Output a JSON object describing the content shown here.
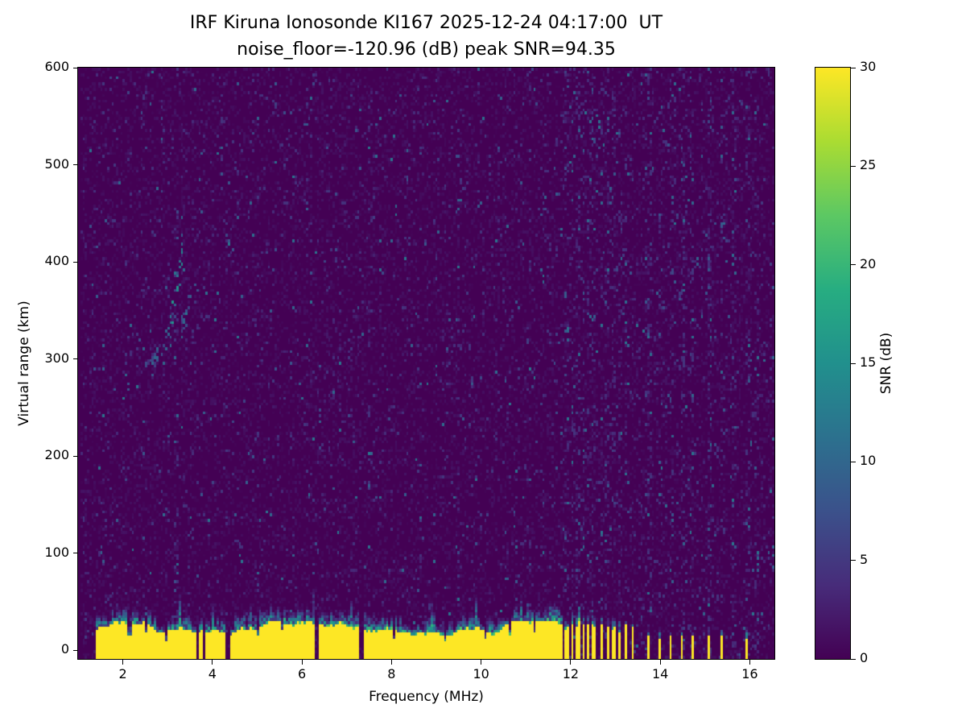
{
  "figure": {
    "title_line1": "IRF Kiruna Ionosonde KI167 2025-12-24 04:17:00  UT",
    "title_line2": "noise_floor=-120.96 (dB) peak SNR=94.35"
  },
  "chart_data": {
    "type": "heatmap",
    "title": "IRF Kiruna Ionosonde KI167 2025-12-24 04:17:00  UT",
    "subtitle": "noise_floor=-120.96 (dB) peak SNR=94.35",
    "station": "KI167",
    "timestamp_ut": "2025-12-24 04:17:00",
    "noise_floor_db": -120.96,
    "peak_snr_db": 94.35,
    "xlabel": "Frequency (MHz)",
    "ylabel": "Virtual range (km)",
    "x_range": [
      1.0,
      16.55
    ],
    "y_range": [
      -9,
      600
    ],
    "x_ticks": [
      2,
      4,
      6,
      8,
      10,
      12,
      14,
      16
    ],
    "y_ticks": [
      0,
      100,
      200,
      300,
      400,
      500,
      600
    ],
    "colorbar": {
      "label": "SNR (dB)",
      "range": [
        0,
        30
      ],
      "ticks": [
        0,
        5,
        10,
        15,
        20,
        25,
        30
      ]
    },
    "colormap": {
      "name": "viridis",
      "stops": [
        [
          0,
          68,
          1,
          84
        ],
        [
          0.125,
          71,
          44,
          122
        ],
        [
          0.25,
          59,
          81,
          139
        ],
        [
          0.375,
          44,
          113,
          142
        ],
        [
          0.5,
          33,
          144,
          141
        ],
        [
          0.625,
          39,
          173,
          129
        ],
        [
          0.75,
          92,
          200,
          99
        ],
        [
          0.875,
          170,
          220,
          50
        ],
        [
          1,
          253,
          231,
          37
        ]
      ]
    },
    "grid": {
      "ncols": 312,
      "nrows": 203,
      "seed": 1167
    },
    "noise": {
      "f_min": 1.05,
      "p_faint": 0.3,
      "v_faint": 1.6,
      "p_low": 0.05,
      "p_mid": 0.008
    },
    "ground_band": {
      "f_start": 1.38,
      "f_end": 11.82,
      "base_height": 22,
      "gaps": [
        {
          "f": 2.15,
          "w": 0.03,
          "depth": 0.5
        },
        {
          "f": 2.52,
          "w": 0.025,
          "depth": 0.4
        },
        {
          "f": 2.95,
          "w": 0.025,
          "depth": 0.5
        },
        {
          "f": 3.67,
          "w": 0.04,
          "depth": 1
        },
        {
          "f": 3.82,
          "w": 0.035,
          "depth": 1
        },
        {
          "f": 4.34,
          "w": 0.04,
          "depth": 1
        },
        {
          "f": 5.0,
          "w": 0.025,
          "depth": 0.4
        },
        {
          "f": 5.55,
          "w": 0.025,
          "depth": 0.35
        },
        {
          "f": 6.35,
          "w": 0.05,
          "depth": 1
        },
        {
          "f": 7.32,
          "w": 0.045,
          "depth": 1
        },
        {
          "f": 8.05,
          "w": 0.025,
          "depth": 0.45
        },
        {
          "f": 9.2,
          "w": 0.025,
          "depth": 0.4
        },
        {
          "f": 10.1,
          "w": 0.025,
          "depth": 0.35
        },
        {
          "f": 10.65,
          "w": 0.025,
          "depth": 0.45
        },
        {
          "f": 11.2,
          "w": 0.025,
          "depth": 0.4
        }
      ]
    },
    "rfi_bars": [
      {
        "f": 11.92,
        "w": 0.035,
        "h": 0.95
      },
      {
        "f": 12.04,
        "w": 0.035,
        "h": 0.9
      },
      {
        "f": 12.16,
        "w": 0.03,
        "h": 0.95
      },
      {
        "f": 12.28,
        "w": 0.035,
        "h": 0.85
      },
      {
        "f": 12.4,
        "w": 0.03,
        "h": 0.95
      },
      {
        "f": 12.53,
        "w": 0.05,
        "h": 0.9
      },
      {
        "f": 12.68,
        "w": 0.035,
        "h": 0.95
      },
      {
        "f": 12.82,
        "w": 0.03,
        "h": 0.85
      },
      {
        "f": 12.96,
        "w": 0.035,
        "h": 0.9
      },
      {
        "f": 13.1,
        "w": 0.03,
        "h": 0.85
      },
      {
        "f": 13.24,
        "w": 0.03,
        "h": 0.8
      },
      {
        "f": 13.38,
        "w": 0.025,
        "h": 0.75
      },
      {
        "f": 13.72,
        "w": 0.025,
        "h": 0.55
      },
      {
        "f": 14.0,
        "w": 0.025,
        "h": 0.5
      },
      {
        "f": 14.25,
        "w": 0.025,
        "h": 0.55
      },
      {
        "f": 14.5,
        "w": 0.025,
        "h": 0.5
      },
      {
        "f": 14.72,
        "w": 0.02,
        "h": 0.45
      },
      {
        "f": 15.1,
        "w": 0.025,
        "h": 0.55
      },
      {
        "f": 15.38,
        "w": 0.02,
        "h": 0.5
      },
      {
        "f": 15.65,
        "w": 0.02,
        "h": 0.45
      },
      {
        "f": 15.95,
        "w": 0.025,
        "h": 0.5
      },
      {
        "f": 16.15,
        "w": 0.02,
        "h": 0.45
      }
    ],
    "rfi_stripes": [
      {
        "f": 3.18,
        "w": 0.05,
        "i": 0.45
      },
      {
        "f": 4.3,
        "w": 0.03,
        "i": 0.2
      },
      {
        "f": 5.0,
        "w": 0.03,
        "i": 0.2
      },
      {
        "f": 6.1,
        "w": 0.03,
        "i": 0.2
      },
      {
        "f": 7.5,
        "w": 0.03,
        "i": 0.25
      },
      {
        "f": 8.65,
        "w": 0.03,
        "i": 0.2
      },
      {
        "f": 9.5,
        "w": 0.03,
        "i": 0.2
      },
      {
        "f": 10.4,
        "w": 0.03,
        "i": 0.25
      },
      {
        "f": 11.1,
        "w": 0.03,
        "i": 0.2
      },
      {
        "f": 12.1,
        "w": 0.45,
        "i": 0.15
      },
      {
        "f": 12.9,
        "w": 0.35,
        "i": 0.12
      },
      {
        "f": 13.75,
        "w": 0.06,
        "i": 0.5
      },
      {
        "f": 14.5,
        "w": 0.06,
        "i": 0.4
      },
      {
        "f": 15.1,
        "w": 0.06,
        "i": 0.45
      },
      {
        "f": 15.65,
        "w": 0.06,
        "i": 0.35
      },
      {
        "f": 16.0,
        "w": 0.05,
        "i": 0.3
      },
      {
        "f": 14.9,
        "w": 1.7,
        "i": 0.06
      }
    ],
    "echo_trace": {
      "description": "ionospheric echo trace near 2.3-3.6 MHz, 290-420 km",
      "segments": [
        {
          "f0": 2.3,
          "f1": 2.65,
          "r0": 288,
          "r1": 300,
          "spread": 8,
          "density": 0.25,
          "vmin": 3,
          "vmax": 8
        },
        {
          "f0": 2.6,
          "f1": 2.95,
          "r0": 295,
          "r1": 310,
          "spread": 12,
          "density": 0.3,
          "vmin": 4,
          "vmax": 10
        },
        {
          "f0": 2.9,
          "f1": 3.1,
          "r0": 305,
          "r1": 345,
          "spread": 18,
          "density": 0.4,
          "vmin": 5,
          "vmax": 12
        },
        {
          "f0": 3.05,
          "f1": 3.3,
          "r0": 330,
          "r1": 415,
          "spread": 28,
          "density": 0.5,
          "vmin": 6,
          "vmax": 16
        },
        {
          "f0": 3.3,
          "f1": 3.55,
          "r0": 335,
          "r1": 370,
          "spread": 16,
          "density": 0.35,
          "vmin": 5,
          "vmax": 12
        }
      ]
    }
  }
}
